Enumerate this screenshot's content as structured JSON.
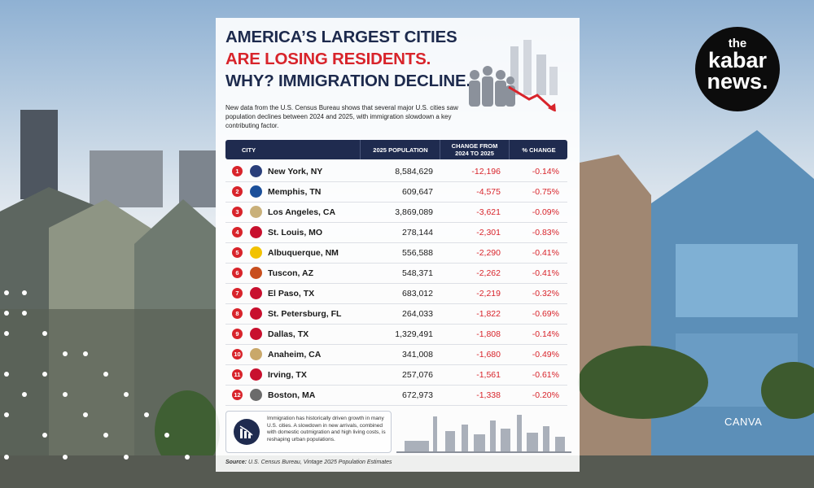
{
  "header": {
    "title_lines": [
      "AMERICA’S LARGEST CITIES",
      "ARE LOSING RESIDENTS.",
      "WHY? IMMIGRATION DECLINE."
    ],
    "description": "New data from the U.S. Census Bureau shows that several major U.S. cities saw population declines between 2024 and 2025, with immigration slowdown a key contributing factor."
  },
  "table": {
    "columns": [
      "CITY",
      "2025 POPULATION",
      "CHANGE FROM 2024 TO 2025",
      "% CHANGE"
    ],
    "rows": [
      [
        "1",
        "New York, NY",
        "8,584,629",
        "-12,196",
        "-0.14%"
      ],
      [
        "2",
        "Memphis, TN",
        "609,647",
        "-4,575",
        "-0.75%"
      ],
      [
        "3",
        "Los Angeles, CA",
        "3,869,089",
        "-3,621",
        "-0.09%"
      ],
      [
        "4",
        "St. Louis, MO",
        "278,144",
        "-2,301",
        "-0.83%"
      ],
      [
        "5",
        "Albuquerque, NM",
        "556,588",
        "-2,290",
        "-0.41%"
      ],
      [
        "6",
        "Tuscon, AZ",
        "548,371",
        "-2,262",
        "-0.41%"
      ],
      [
        "7",
        "El Paso, TX",
        "683,012",
        "-2,219",
        "-0.32%"
      ],
      [
        "8",
        "St. Petersburg, FL",
        "264,033",
        "-1,822",
        "-0.69%"
      ],
      [
        "9",
        "Dallas, TX",
        "1,329,491",
        "-1,808",
        "-0.14%"
      ],
      [
        "10",
        "Anaheim, CA",
        "341,008",
        "-1,680",
        "-0.49%"
      ],
      [
        "11",
        "Irving, TX",
        "257,076",
        "-1,561",
        "-0.61%"
      ],
      [
        "12",
        "Boston, MA",
        "672,973",
        "-1,338",
        "-0.20%"
      ]
    ]
  },
  "note": "Immigration has historically driven growth in many U.S. cities. A slowdown in new arrivals, combined with domestic outmigration and high living costs, is reshaping urban populations.",
  "source": {
    "label": "Source:",
    "text": "U.S. Census Bureau, Vintage 2025 Population Estimates"
  },
  "logo": {
    "lines": [
      "the",
      "kabar",
      "news."
    ]
  },
  "watermark": "CANVA"
}
